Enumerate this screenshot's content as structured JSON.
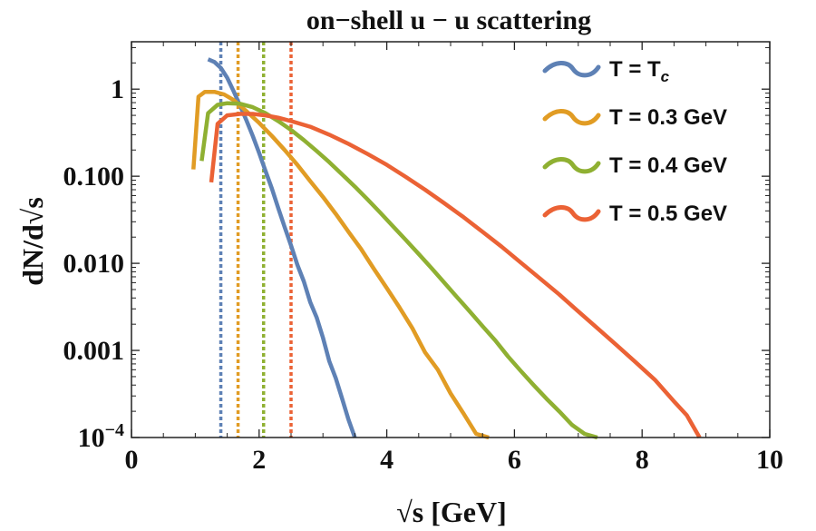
{
  "chart_data": {
    "type": "line",
    "title": "on−shell u − u  scattering",
    "xlabel": "√s  [GeV]",
    "ylabel": "dN/d√s",
    "xlim": [
      0,
      10
    ],
    "ylim": [
      0.0001,
      3.5
    ],
    "yscale": "log",
    "x_ticks": [
      0,
      2,
      4,
      6,
      8,
      10
    ],
    "x_tick_labels": [
      "0",
      "2",
      "4",
      "6",
      "8",
      "10"
    ],
    "y_ticks": [
      1,
      0.1,
      0.01,
      0.001,
      0.0001
    ],
    "y_tick_labels": [
      "1",
      "0.100",
      "0.010",
      "0.001",
      "10−4"
    ],
    "legend_position": "top-right",
    "series": [
      {
        "name": "T = Tc",
        "legend_main": "T = T",
        "legend_sub": "c",
        "color": "#5e81b5",
        "threshold_x": 1.4,
        "x": [
          1.2,
          1.3,
          1.4,
          1.5,
          1.6,
          1.7,
          1.8,
          1.9,
          2.0,
          2.1,
          2.2,
          2.3,
          2.4,
          2.5,
          2.6,
          2.7,
          2.8,
          2.9,
          3.0,
          3.1,
          3.2,
          3.3,
          3.4,
          3.5
        ],
        "y": [
          2.2,
          2.05,
          1.75,
          1.35,
          0.95,
          0.65,
          0.44,
          0.29,
          0.185,
          0.115,
          0.072,
          0.043,
          0.026,
          0.016,
          0.0096,
          0.0062,
          0.0036,
          0.0024,
          0.0014,
          0.00075,
          0.00048,
          0.00028,
          0.00016,
          0.0001
        ]
      },
      {
        "name": "T = 0.3 GeV",
        "color": "#e19c24",
        "threshold_x": 1.67,
        "x": [
          0.97,
          1.05,
          1.15,
          1.3,
          1.45,
          1.6,
          1.8,
          2.0,
          2.2,
          2.4,
          2.6,
          2.8,
          3.0,
          3.2,
          3.4,
          3.6,
          3.8,
          4.0,
          4.2,
          4.4,
          4.6,
          4.8,
          5.0,
          5.2,
          5.4,
          5.6
        ],
        "y": [
          0.12,
          0.82,
          0.93,
          0.93,
          0.87,
          0.75,
          0.56,
          0.41,
          0.29,
          0.2,
          0.135,
          0.088,
          0.058,
          0.037,
          0.023,
          0.0145,
          0.0086,
          0.0052,
          0.0031,
          0.0018,
          0.00095,
          0.0006,
          0.00032,
          0.00019,
          0.00011,
          0.0001
        ]
      },
      {
        "name": "T = 0.4 GeV",
        "color": "#8fb032",
        "threshold_x": 2.07,
        "x": [
          1.1,
          1.2,
          1.35,
          1.5,
          1.7,
          1.9,
          2.1,
          2.3,
          2.5,
          2.7,
          2.9,
          3.1,
          3.3,
          3.5,
          3.7,
          3.9,
          4.1,
          4.3,
          4.5,
          4.7,
          4.9,
          5.1,
          5.3,
          5.5,
          5.7,
          5.9,
          6.1,
          6.3,
          6.5,
          6.7,
          6.9,
          7.1,
          7.3
        ],
        "y": [
          0.15,
          0.53,
          0.66,
          0.69,
          0.68,
          0.62,
          0.53,
          0.43,
          0.34,
          0.26,
          0.195,
          0.145,
          0.105,
          0.076,
          0.054,
          0.038,
          0.0265,
          0.0185,
          0.0128,
          0.0088,
          0.006,
          0.0041,
          0.0028,
          0.0019,
          0.0013,
          0.00085,
          0.00058,
          0.0004,
          0.00028,
          0.0002,
          0.00014,
          0.00011,
          0.0001
        ]
      },
      {
        "name": "T = 0.5 GeV",
        "color": "#eb6235",
        "threshold_x": 2.5,
        "x": [
          1.25,
          1.35,
          1.5,
          1.7,
          1.9,
          2.1,
          2.3,
          2.5,
          2.8,
          3.1,
          3.4,
          3.7,
          4.0,
          4.3,
          4.6,
          4.9,
          5.2,
          5.5,
          5.8,
          6.1,
          6.4,
          6.7,
          7.0,
          7.3,
          7.6,
          7.9,
          8.2,
          8.5,
          8.7,
          8.9
        ],
        "y": [
          0.085,
          0.4,
          0.5,
          0.52,
          0.52,
          0.5,
          0.47,
          0.43,
          0.37,
          0.3,
          0.235,
          0.18,
          0.135,
          0.098,
          0.07,
          0.049,
          0.034,
          0.023,
          0.0155,
          0.0102,
          0.0067,
          0.0044,
          0.0028,
          0.0018,
          0.00115,
          0.00073,
          0.00046,
          0.00026,
          0.00018,
          0.0001
        ]
      }
    ]
  }
}
